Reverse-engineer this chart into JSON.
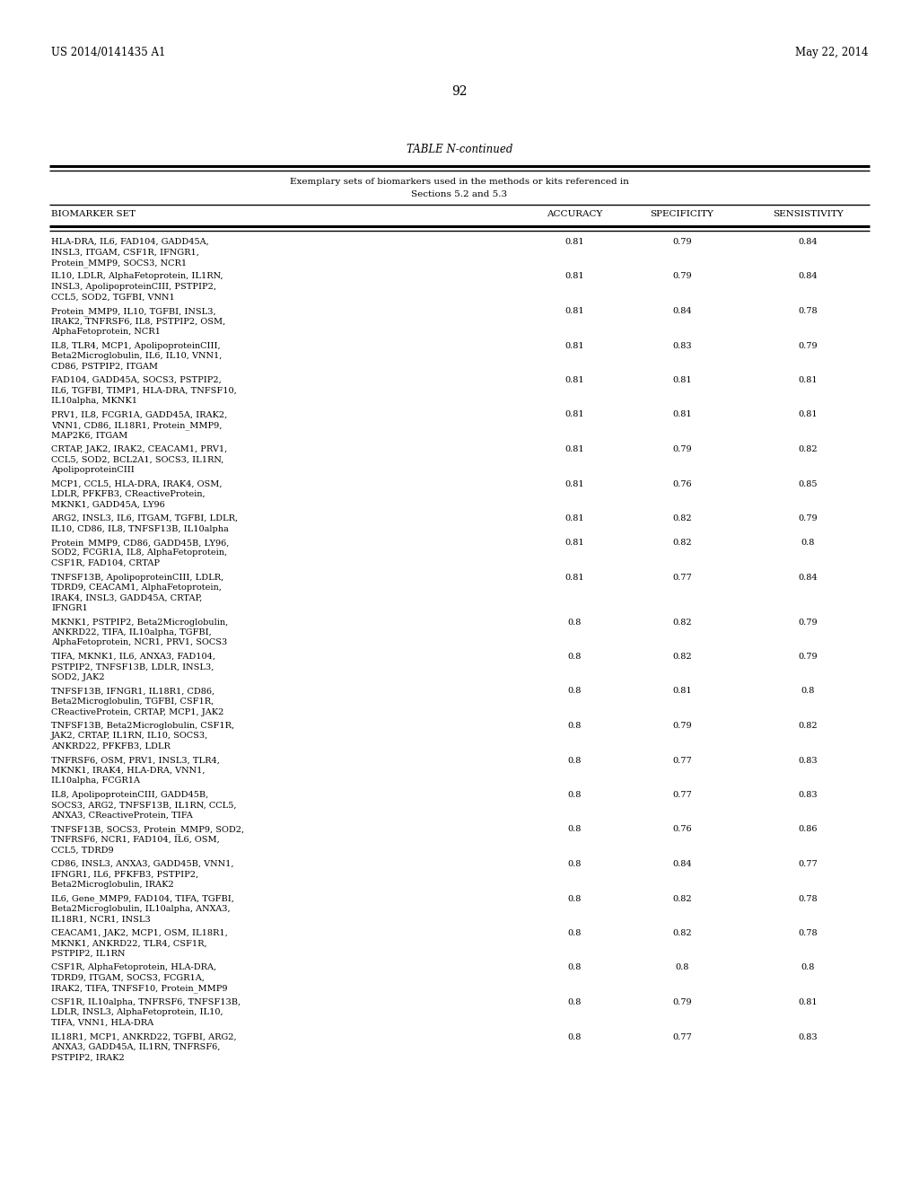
{
  "header_left": "US 2014/0141435 A1",
  "header_right": "May 22, 2014",
  "page_number": "92",
  "table_title": "TABLE N-continued",
  "table_subtitle1": "Exemplary sets of biomarkers used in the methods or kits referenced in",
  "table_subtitle2": "Sections 5.2 and 5.3",
  "col_headers": [
    "BIOMARKER SET",
    "ACCURACY",
    "SPECIFICITY",
    "SENSISTIVITY"
  ],
  "rows": [
    [
      "HLA-DRA, IL6, FAD104, GADD45A,\nINSL3, ITGAM, CSF1R, IFNGR1,\nProtein_MMP9, SOCS3, NCR1",
      "0.81",
      "0.79",
      "0.84"
    ],
    [
      "IL10, LDLR, AlphaFetoprotein, IL1RN,\nINSL3, ApolipoproteinCIII, PSTPIP2,\nCCL5, SOD2, TGFBI, VNN1",
      "0.81",
      "0.79",
      "0.84"
    ],
    [
      "Protein_MMP9, IL10, TGFBI, INSL3,\nIRAK2, TNFRSF6, IL8, PSTPIP2, OSM,\nAlphaFetoprotein, NCR1",
      "0.81",
      "0.84",
      "0.78"
    ],
    [
      "IL8, TLR4, MCP1, ApolipoproteinCIII,\nBeta2Microglobulin, IL6, IL10, VNN1,\nCD86, PSTPIP2, ITGAM",
      "0.81",
      "0.83",
      "0.79"
    ],
    [
      "FAD104, GADD45A, SOCS3, PSTPIP2,\nIL6, TGFBI, TIMP1, HLA-DRA, TNFSF10,\nIL10alpha, MKNK1",
      "0.81",
      "0.81",
      "0.81"
    ],
    [
      "PRV1, IL8, FCGR1A, GADD45A, IRAK2,\nVNN1, CD86, IL18R1, Protein_MMP9,\nMAP2K6, ITGAM",
      "0.81",
      "0.81",
      "0.81"
    ],
    [
      "CRTAP, JAK2, IRAK2, CEACAM1, PRV1,\nCCL5, SOD2, BCL2A1, SOCS3, IL1RN,\nApolipoproteinCIII",
      "0.81",
      "0.79",
      "0.82"
    ],
    [
      "MCP1, CCL5, HLA-DRA, IRAK4, OSM,\nLDLR, PFKFB3, CReactiveProtein,\nMKNK1, GADD45A, LY96",
      "0.81",
      "0.76",
      "0.85"
    ],
    [
      "ARG2, INSL3, IL6, ITGAM, TGFBI, LDLR,\nIL10, CD86, IL8, TNFSF13B, IL10alpha",
      "0.81",
      "0.82",
      "0.79"
    ],
    [
      "Protein_MMP9, CD86, GADD45B, LY96,\nSOD2, FCGR1A, IL8, AlphaFetoprotein,\nCSF1R, FAD104, CRTAP",
      "0.81",
      "0.82",
      "0.8"
    ],
    [
      "TNFSF13B, ApolipoproteinCIII, LDLR,\nTDRD9, CEACAM1, AlphaFetoprotein,\nIRAK4, INSL3, GADD45A, CRTAP,\nIFNGR1",
      "0.81",
      "0.77",
      "0.84"
    ],
    [
      "MKNK1, PSTPIP2, Beta2Microglobulin,\nANKRD22, TIFA, IL10alpha, TGFBI,\nAlphaFetoprotein, NCR1, PRV1, SOCS3",
      "0.8",
      "0.82",
      "0.79"
    ],
    [
      "TIFA, MKNK1, IL6, ANXA3, FAD104,\nPSTPIP2, TNFSF13B, LDLR, INSL3,\nSOD2, JAK2",
      "0.8",
      "0.82",
      "0.79"
    ],
    [
      "TNFSF13B, IFNGR1, IL18R1, CD86,\nBeta2Microglobulin, TGFBI, CSF1R,\nCReactiveProtein, CRTAP, MCP1, JAK2",
      "0.8",
      "0.81",
      "0.8"
    ],
    [
      "TNFSF13B, Beta2Microglobulin, CSF1R,\nJAK2, CRTAP, IL1RN, IL10, SOCS3,\nANKRD22, PFKFB3, LDLR",
      "0.8",
      "0.79",
      "0.82"
    ],
    [
      "TNFRSF6, OSM, PRV1, INSL3, TLR4,\nMKNK1, IRAK4, HLA-DRA, VNN1,\nIL10alpha, FCGR1A",
      "0.8",
      "0.77",
      "0.83"
    ],
    [
      "IL8, ApolipoproteinCIII, GADD45B,\nSOCS3, ARG2, TNFSF13B, IL1RN, CCL5,\nANXA3, CReactiveProtein, TIFA",
      "0.8",
      "0.77",
      "0.83"
    ],
    [
      "TNFSF13B, SOCS3, Protein_MMP9, SOD2,\nTNFRSF6, NCR1, FAD104, IL6, OSM,\nCCL5, TDRD9",
      "0.8",
      "0.76",
      "0.86"
    ],
    [
      "CD86, INSL3, ANXA3, GADD45B, VNN1,\nIFNGR1, IL6, PFKFB3, PSTPIP2,\nBeta2Microglobulin, IRAK2",
      "0.8",
      "0.84",
      "0.77"
    ],
    [
      "IL6, Gene_MMP9, FAD104, TIFA, TGFBI,\nBeta2Microglobulin, IL10alpha, ANXA3,\nIL18R1, NCR1, INSL3",
      "0.8",
      "0.82",
      "0.78"
    ],
    [
      "CEACAM1, JAK2, MCP1, OSM, IL18R1,\nMKNK1, ANKRD22, TLR4, CSF1R,\nPSTPIP2, IL1RN",
      "0.8",
      "0.82",
      "0.78"
    ],
    [
      "CSF1R, AlphaFetoprotein, HLA-DRA,\nTDRD9, ITGAM, SOCS3, FCGR1A,\nIRAK2, TIFA, TNFSF10, Protein_MMP9",
      "0.8",
      "0.8",
      "0.8"
    ],
    [
      "CSF1R, IL10alpha, TNFRSF6, TNFSF13B,\nLDLR, INSL3, AlphaFetoprotein, IL10,\nTIFA, VNN1, HLA-DRA",
      "0.8",
      "0.79",
      "0.81"
    ],
    [
      "IL18R1, MCP1, ANKRD22, TGFBI, ARG2,\nANXA3, GADD45A, IL1RN, TNFRSF6,\nPSTPIP2, IRAK2",
      "0.8",
      "0.77",
      "0.83"
    ]
  ]
}
